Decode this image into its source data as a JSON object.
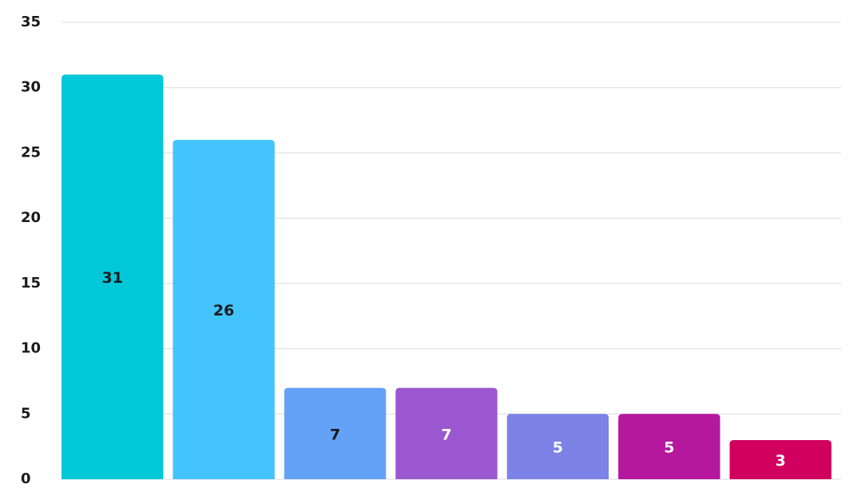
{
  "chart_data": {
    "type": "bar",
    "categories": [
      null,
      null,
      null,
      null,
      null,
      null,
      null
    ],
    "values": [
      31,
      26,
      7,
      7,
      5,
      5,
      3
    ],
    "colors": [
      "#00c8d8",
      "#43c4ff",
      "#64a2f7",
      "#9b57d0",
      "#7c82e6",
      "#b5179e",
      "#d1005f"
    ],
    "label_colors": [
      "#1a1a1a",
      "#1a1a1a",
      "#1a1a1a",
      "#ffffff",
      "#ffffff",
      "#ffffff",
      "#ffffff"
    ],
    "ylim": [
      0,
      35
    ],
    "yticks": [
      0,
      5,
      10,
      15,
      20,
      25,
      30,
      35
    ],
    "grid": true
  }
}
